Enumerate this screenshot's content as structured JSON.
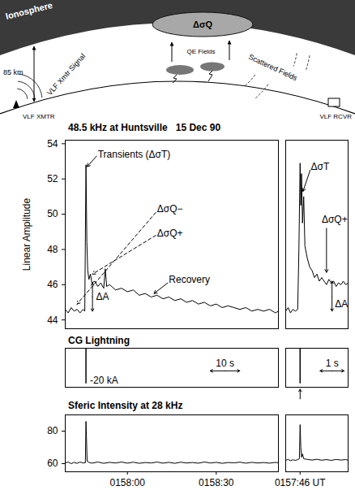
{
  "diagram": {
    "labels": {
      "ionosphere": "Ionosphere",
      "height": "85 km",
      "signal": "VLF Xmtr Signal",
      "disturbance": "ΔσQ",
      "fields": "QE Fields",
      "scattered": "Scattered Fields",
      "transmitter": "VLF XMTR",
      "receiver": "VLF RCVR"
    }
  },
  "chart_data": [
    {
      "type": "line",
      "title": "48.5 kHz at Huntsville   15 Dec 90",
      "y_label": "Linear Amplitude",
      "color": "#000000",
      "x": [
        39,
        40,
        41,
        42,
        43,
        44,
        45,
        45.6,
        46,
        46.3,
        46.6,
        47,
        47.5,
        48,
        49,
        50,
        51,
        52,
        52.5,
        53,
        54,
        56,
        58,
        60,
        62,
        64,
        66,
        68,
        70,
        72,
        74,
        76,
        78,
        80,
        82,
        84,
        86,
        88,
        90,
        92,
        94,
        96,
        98,
        100,
        102,
        104,
        106,
        108,
        110,
        111
      ],
      "values": [
        44.6,
        44.4,
        44.7,
        44.5,
        44.6,
        44.4,
        44.6,
        44.5,
        52.8,
        48.4,
        46.8,
        46.3,
        46.6,
        46.1,
        46.2,
        45.9,
        46.1,
        45.8,
        46.9,
        45.9,
        46.0,
        45.7,
        45.8,
        45.6,
        45.7,
        45.4,
        45.5,
        45.3,
        45.4,
        45.2,
        45.3,
        45.1,
        45.2,
        45.0,
        45.1,
        44.9,
        45.0,
        44.8,
        44.9,
        44.7,
        44.8,
        44.7,
        44.6,
        44.7,
        44.5,
        44.6,
        44.5,
        44.6,
        44.4,
        44.5
      ],
      "xlim": [
        39,
        111
      ],
      "ylim": [
        43.5,
        54.2
      ],
      "yticks": [
        44,
        46,
        48,
        50,
        52,
        54
      ],
      "tick_labels": "y",
      "annotations": [
        {
          "text": "Transients (ΔσT)",
          "x": 50,
          "y": 53.4,
          "arrow": [
            49.6,
            53.3,
            46.4,
            52.7
          ],
          "line_style": "solid"
        },
        {
          "text": "ΔσQ−",
          "x": 70,
          "y": 50.3,
          "arrow": [
            69.6,
            50.1,
            43,
            44.9
          ],
          "line_style": "dashed"
        },
        {
          "text": "ΔσQ+",
          "x": 70,
          "y": 48.9,
          "arrow": [
            69.6,
            48.8,
            48.2,
            46.6
          ],
          "line_style": "dashed"
        },
        {
          "text": "ΔA",
          "x": 49.4,
          "y": 45.3,
          "arrow": [
            48.2,
            44.5,
            48.2,
            46.1
          ],
          "marker": "double-arrow"
        },
        {
          "text": "Recovery",
          "x": 74,
          "y": 46.3,
          "arrow": [
            73.6,
            46.1,
            69,
            45.5
          ],
          "line_style": "solid"
        }
      ]
    },
    {
      "type": "line",
      "color": "#000000",
      "x": [
        45.4,
        45.5,
        45.6,
        45.7,
        45.8,
        45.9,
        45.95,
        46.0,
        46.03,
        46.06,
        46.1,
        46.15,
        46.2,
        46.3,
        46.4,
        46.5,
        46.6,
        46.7,
        46.8,
        46.9,
        47.0,
        47.1,
        47.2,
        47.3,
        47.4,
        47.5,
        47.6,
        47.7,
        47.8,
        47.9,
        48.0
      ],
      "values": [
        44.5,
        44.7,
        44.4,
        44.6,
        44.5,
        44.6,
        48,
        52.9,
        50.5,
        52.3,
        49.5,
        51.0,
        48.2,
        47.5,
        47.0,
        46.8,
        46.4,
        46.6,
        46.2,
        46.4,
        46.2,
        46.0,
        46.3,
        46.1,
        46.2,
        45.9,
        46.1,
        46.0,
        46.2,
        46.0,
        46.1
      ],
      "xlim": [
        45.4,
        48
      ],
      "ylim": [
        43.5,
        54.2
      ],
      "tick_labels": false,
      "annotations": [
        {
          "text": "ΔσT",
          "x": 46.45,
          "y": 52.7,
          "arrow": [
            46.42,
            52.5,
            46.12,
            51.3
          ],
          "line_style": "solid"
        },
        {
          "text": "ΔσQ+",
          "x": 46.9,
          "y": 49.7,
          "arrow": [
            47.1,
            49.2,
            47.1,
            46.7
          ],
          "line_style": "solid"
        },
        {
          "text": "ΔA",
          "x": 47.45,
          "y": 44.9,
          "arrow": [
            47.33,
            44.5,
            47.33,
            46.2
          ],
          "marker": "double-arrow"
        }
      ]
    },
    {
      "type": "rule",
      "title": "CG Lightning",
      "color": "#000000",
      "x": [
        46
      ],
      "values": [
        -20
      ],
      "value_labels": [
        "-20 kA"
      ],
      "data_labels": true,
      "xlim": [
        39,
        111
      ],
      "ylim": [
        -22,
        0
      ],
      "tick_labels": false,
      "scale_bar": {
        "label": "10 s",
        "length": 10
      }
    },
    {
      "type": "rule",
      "color": "#000000",
      "x": [
        46
      ],
      "values": [
        -20
      ],
      "xlim": [
        45.4,
        48
      ],
      "ylim": [
        -22,
        0
      ],
      "tick_labels": false,
      "scale_bar": {
        "label": "1 s",
        "length": 1
      }
    },
    {
      "type": "line",
      "title": "Sferic Intensity at 28 kHz",
      "color": "#000000",
      "x": [
        39,
        40,
        41,
        42,
        43,
        44,
        45,
        45.8,
        46,
        46.4,
        47,
        48,
        50,
        52,
        54,
        56,
        58,
        60,
        62,
        64,
        66,
        68,
        70,
        72,
        74,
        76,
        78,
        80,
        82,
        84,
        86,
        88,
        90,
        92,
        94,
        96,
        98,
        100,
        102,
        104,
        106,
        108,
        110,
        111
      ],
      "values": [
        60.5,
        61,
        60,
        60.8,
        60.2,
        61,
        60.4,
        60.6,
        86,
        61.5,
        60.8,
        60.3,
        61,
        60.2,
        60.8,
        60.4,
        61,
        60.3,
        60.9,
        60.2,
        60.7,
        60.4,
        61,
        60.3,
        60.8,
        60.2,
        60.9,
        60.4,
        60.7,
        60.3,
        61,
        60.4,
        60.8,
        60.2,
        60.7,
        60.5,
        60.9,
        60.3,
        60.8,
        60.4,
        60.7,
        60.3,
        60.8,
        60.5
      ],
      "xlim": [
        39,
        111
      ],
      "ylim": [
        55,
        90
      ],
      "yticks": [
        60,
        80
      ],
      "xticks": [
        {
          "value": 60,
          "label": "0158:00"
        },
        {
          "value": 90,
          "label": "0158:30"
        }
      ]
    },
    {
      "type": "line",
      "color": "#000000",
      "x": [
        45.4,
        45.5,
        45.6,
        45.7,
        45.8,
        45.9,
        45.97,
        46.0,
        46.03,
        46.06,
        46.1,
        46.15,
        46.3,
        46.5,
        46.7,
        46.9,
        47.1,
        47.3,
        47.5,
        47.7,
        47.9,
        48.0
      ],
      "values": [
        62,
        62.6,
        61.8,
        62.4,
        62,
        62.5,
        63,
        84,
        70,
        64,
        66,
        63,
        62.6,
        62.2,
        62.7,
        62.1,
        62.5,
        62,
        62.6,
        62.2,
        62.5,
        62.1
      ],
      "xlim": [
        45.4,
        48
      ],
      "ylim": [
        55,
        90
      ],
      "xticks": [
        {
          "value": 46,
          "label": "0157:46 UT"
        }
      ],
      "tick_labels": "x"
    }
  ]
}
